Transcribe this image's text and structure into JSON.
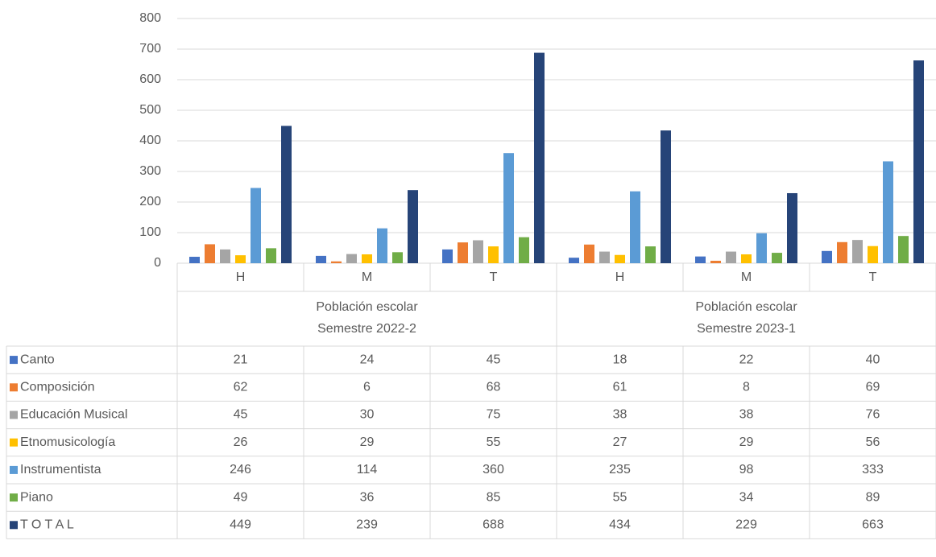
{
  "chart_data": {
    "type": "bar",
    "categories": [
      "H",
      "M",
      "T",
      "H",
      "M",
      "T"
    ],
    "group_labels": [
      [
        "Población escolar",
        "Semestre 2022-2"
      ],
      [
        "Población escolar",
        "Semestre 2023-1"
      ]
    ],
    "series": [
      {
        "name": "Canto",
        "color": "#4472c4",
        "values": [
          21,
          24,
          45,
          18,
          22,
          40
        ]
      },
      {
        "name": "Composición",
        "color": "#ed7d31",
        "values": [
          62,
          6,
          68,
          61,
          8,
          69
        ]
      },
      {
        "name": "Educación Musical",
        "color": "#a5a5a5",
        "values": [
          45,
          30,
          75,
          38,
          38,
          76
        ]
      },
      {
        "name": "Etnomusicología",
        "color": "#ffc000",
        "values": [
          26,
          29,
          55,
          27,
          29,
          56
        ]
      },
      {
        "name": "Instrumentista",
        "color": "#5b9bd5",
        "values": [
          246,
          114,
          360,
          235,
          98,
          333
        ]
      },
      {
        "name": "Piano",
        "color": "#70ad47",
        "values": [
          49,
          36,
          85,
          55,
          34,
          89
        ]
      },
      {
        "name": "T O T A L",
        "color": "#264478",
        "values": [
          449,
          239,
          688,
          434,
          229,
          663
        ]
      }
    ],
    "ylim": [
      0,
      800
    ],
    "yticks": [
      0,
      100,
      200,
      300,
      400,
      500,
      600,
      700,
      800
    ],
    "grid": true
  }
}
